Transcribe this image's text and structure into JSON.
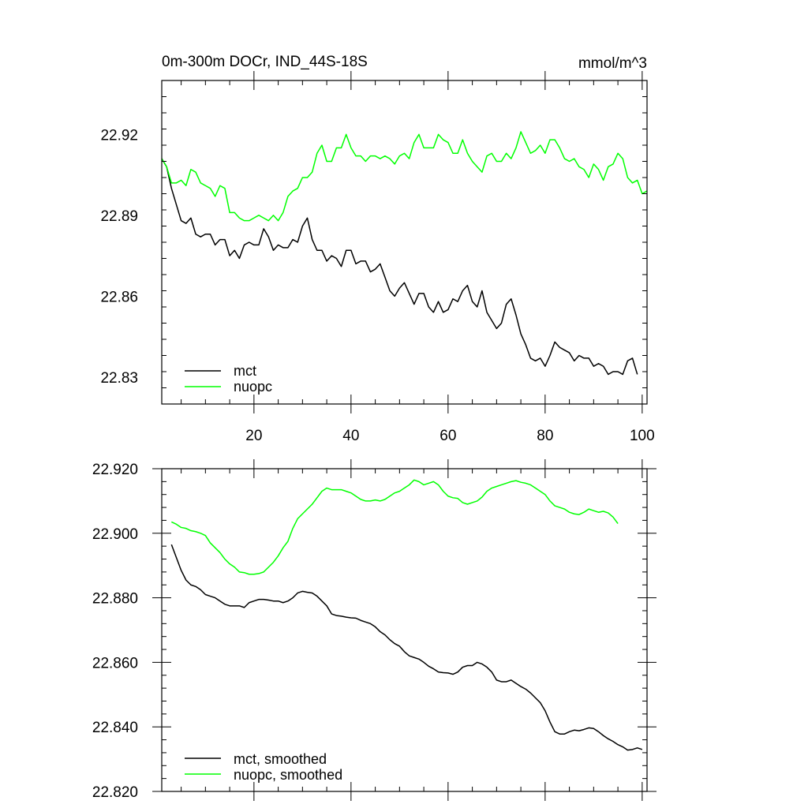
{
  "chart_data": [
    {
      "type": "line",
      "title": "0m-300m DOCr, IND_44S-18S",
      "units": "mmol/m^3",
      "xlim": [
        1,
        101
      ],
      "ylim": [
        22.82,
        22.94
      ],
      "x_ticks": [
        20,
        40,
        60,
        80,
        100
      ],
      "y_ticks": [
        22.83,
        22.86,
        22.89,
        22.92
      ],
      "y_tick_labels": [
        "22.83",
        "22.86",
        "22.89",
        "22.92"
      ],
      "legend_position": "bottom-left",
      "series": [
        {
          "name": "mct",
          "color": "#000000",
          "x_start": 1,
          "values": [
            22.911,
            22.908,
            22.9,
            22.894,
            22.888,
            22.887,
            22.889,
            22.883,
            22.882,
            22.883,
            22.883,
            22.879,
            22.881,
            22.881,
            22.875,
            22.877,
            22.874,
            22.879,
            22.88,
            22.879,
            22.879,
            22.885,
            22.882,
            22.877,
            22.879,
            22.878,
            22.878,
            22.881,
            22.88,
            22.886,
            22.889,
            22.881,
            22.877,
            22.877,
            22.873,
            22.875,
            22.874,
            22.871,
            22.877,
            22.877,
            22.872,
            22.873,
            22.873,
            22.869,
            22.87,
            22.872,
            22.867,
            22.862,
            22.86,
            22.863,
            22.865,
            22.861,
            22.857,
            22.861,
            22.861,
            22.856,
            22.854,
            22.858,
            22.854,
            22.855,
            22.859,
            22.858,
            22.862,
            22.864,
            22.858,
            22.856,
            22.862,
            22.854,
            22.851,
            22.848,
            22.85,
            22.857,
            22.859,
            22.853,
            22.846,
            22.842,
            22.837,
            22.836,
            22.837,
            22.834,
            22.838,
            22.843,
            22.841,
            22.84,
            22.839,
            22.836,
            22.838,
            22.837,
            22.837,
            22.834,
            22.835,
            22.834,
            22.831,
            22.832,
            22.832,
            22.831,
            22.836,
            22.837,
            22.831
          ]
        },
        {
          "name": "nuopc",
          "color": "#00ff00",
          "x_start": 1,
          "values": [
            22.911,
            22.908,
            22.902,
            22.902,
            22.903,
            22.901,
            22.907,
            22.906,
            22.902,
            22.901,
            22.9,
            22.897,
            22.901,
            22.9,
            22.891,
            22.891,
            22.889,
            22.888,
            22.888,
            22.889,
            22.89,
            22.889,
            22.888,
            22.89,
            22.888,
            22.891,
            22.897,
            22.899,
            22.9,
            22.904,
            22.904,
            22.906,
            22.913,
            22.916,
            22.91,
            22.91,
            22.915,
            22.915,
            22.92,
            22.915,
            22.912,
            22.912,
            22.91,
            22.912,
            22.912,
            22.911,
            22.912,
            22.911,
            22.909,
            22.912,
            22.913,
            22.911,
            22.917,
            22.92,
            22.915,
            22.915,
            22.915,
            22.92,
            22.918,
            22.917,
            22.913,
            22.913,
            22.918,
            22.913,
            22.91,
            22.908,
            22.906,
            22.912,
            22.913,
            22.91,
            22.91,
            22.913,
            22.911,
            22.915,
            22.921,
            22.917,
            22.913,
            22.914,
            22.916,
            22.913,
            22.918,
            22.918,
            22.915,
            22.911,
            22.91,
            22.911,
            22.908,
            22.907,
            22.904,
            22.909,
            22.907,
            22.903,
            22.908,
            22.909,
            22.913,
            22.911,
            22.904,
            22.902,
            22.903,
            22.898,
            22.899
          ]
        }
      ]
    },
    {
      "type": "line",
      "xlim": [
        1,
        101
      ],
      "ylim": [
        22.82,
        22.92
      ],
      "x_ticks": [
        20,
        40,
        60,
        80,
        100
      ],
      "y_ticks": [
        22.82,
        22.84,
        22.86,
        22.88,
        22.9,
        22.92
      ],
      "y_tick_labels": [
        "22.820",
        "22.840",
        "22.860",
        "22.880",
        "22.900",
        "22.920"
      ],
      "legend_position": "bottom-left",
      "series": [
        {
          "name": "mct, smoothed",
          "color": "#000000",
          "x_start": 3,
          "values": [
            22.8965,
            22.8925,
            22.8885,
            22.8855,
            22.884,
            22.8835,
            22.8825,
            22.881,
            22.8805,
            22.88,
            22.879,
            22.878,
            22.8775,
            22.8775,
            22.8775,
            22.877,
            22.8785,
            22.879,
            22.8795,
            22.8795,
            22.8793,
            22.879,
            22.879,
            22.8785,
            22.879,
            22.88,
            22.8815,
            22.882,
            22.8817,
            22.8815,
            22.8805,
            22.879,
            22.8775,
            22.875,
            22.8745,
            22.8743,
            22.874,
            22.8738,
            22.8737,
            22.873,
            22.8725,
            22.872,
            22.871,
            22.8695,
            22.8685,
            22.867,
            22.8658,
            22.865,
            22.8633,
            22.862,
            22.8615,
            22.861,
            22.86,
            22.8588,
            22.858,
            22.857,
            22.8568,
            22.8567,
            22.8563,
            22.857,
            22.8585,
            22.859,
            22.859,
            22.86,
            22.8595,
            22.8585,
            22.857,
            22.8545,
            22.854,
            22.854,
            22.8545,
            22.8535,
            22.8525,
            22.8517,
            22.8505,
            22.849,
            22.8475,
            22.845,
            22.8415,
            22.8385,
            22.8378,
            22.8378,
            22.8385,
            22.839,
            22.8388,
            22.8392,
            22.8397,
            22.8395,
            22.8385,
            22.8373,
            22.8363,
            22.8355,
            22.8345,
            22.8338,
            22.8328,
            22.833,
            22.8335,
            22.833
          ]
        },
        {
          "name": "nuopc, smoothed",
          "color": "#00ff00",
          "x_start": 3,
          "values": [
            22.9035,
            22.9028,
            22.9018,
            22.9015,
            22.9008,
            22.9005,
            22.9,
            22.8993,
            22.897,
            22.8955,
            22.894,
            22.892,
            22.8905,
            22.8895,
            22.888,
            22.8878,
            22.8873,
            22.8873,
            22.8875,
            22.888,
            22.8895,
            22.891,
            22.893,
            22.8955,
            22.8975,
            22.9015,
            22.9045,
            22.906,
            22.9075,
            22.909,
            22.911,
            22.913,
            22.914,
            22.9135,
            22.9135,
            22.9135,
            22.913,
            22.9125,
            22.9115,
            22.9105,
            22.91,
            22.91,
            22.9103,
            22.91,
            22.9105,
            22.9115,
            22.9125,
            22.913,
            22.914,
            22.915,
            22.9165,
            22.916,
            22.915,
            22.9155,
            22.916,
            22.915,
            22.913,
            22.9115,
            22.911,
            22.9108,
            22.9095,
            22.909,
            22.9095,
            22.91,
            22.9112,
            22.913,
            22.914,
            22.9145,
            22.915,
            22.9155,
            22.916,
            22.9163,
            22.9158,
            22.9155,
            22.915,
            22.914,
            22.913,
            22.912,
            22.91,
            22.9085,
            22.908,
            22.9075,
            22.9065,
            22.906,
            22.9058,
            22.9065,
            22.9075,
            22.907,
            22.9065,
            22.9068,
            22.9063,
            22.905,
            22.903
          ]
        }
      ]
    }
  ]
}
